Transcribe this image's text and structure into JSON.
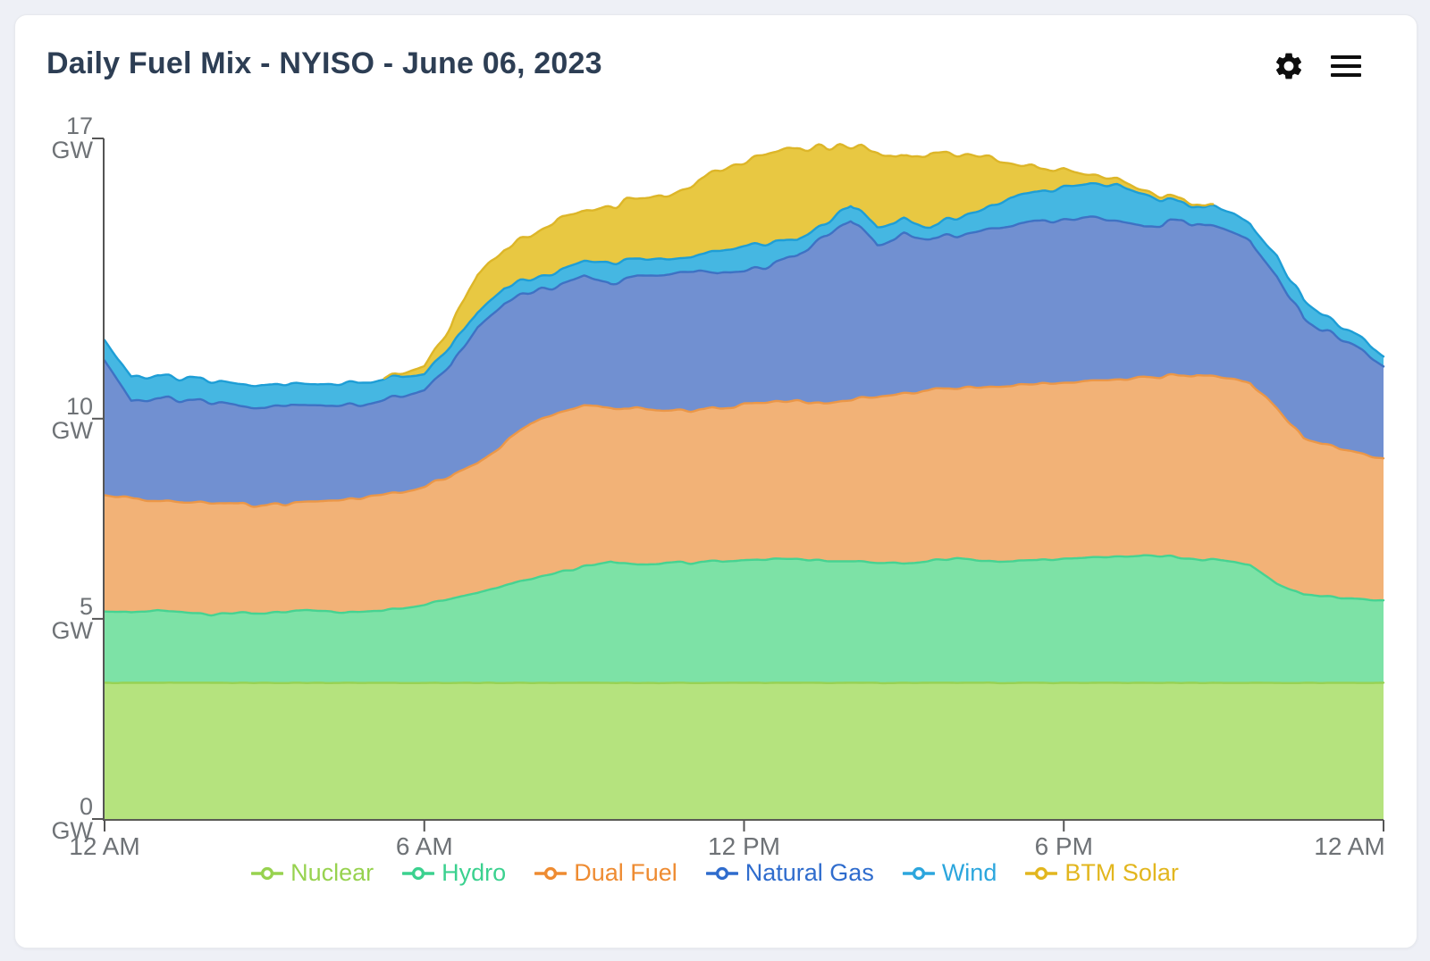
{
  "header": {
    "title": "Daily Fuel Mix - NYISO - June 06, 2023",
    "icons": [
      {
        "name": "settings-gear",
        "color": "#0e0e0e"
      },
      {
        "name": "menu-hamburger",
        "color": "#0e0e0e"
      }
    ]
  },
  "axis": {
    "y_unit": "GW",
    "y_ticks": [
      {
        "label": "17",
        "unit": "GW",
        "value": 17
      },
      {
        "label": "10",
        "unit": "GW",
        "value": 10
      },
      {
        "label": "5",
        "unit": "GW",
        "value": 5
      },
      {
        "label": "0",
        "unit": "GW",
        "value": 0
      }
    ],
    "x_ticks": [
      {
        "label": "12 AM",
        "hour": 0
      },
      {
        "label": "6 AM",
        "hour": 6
      },
      {
        "label": "12 PM",
        "hour": 12
      },
      {
        "label": "6 PM",
        "hour": 18
      },
      {
        "label": "12 AM",
        "hour": 24
      }
    ]
  },
  "chart_data": {
    "type": "area",
    "stacked": true,
    "title": "Daily Fuel Mix - NYISO - June 06, 2023",
    "xlabel": "",
    "ylabel": "GW",
    "ylim": [
      0,
      17
    ],
    "x_range_hours": [
      0,
      24
    ],
    "grid": false,
    "legend_position": "bottom",
    "x": [
      0,
      0.5,
      1,
      1.5,
      2,
      2.5,
      3,
      3.5,
      4,
      4.5,
      5,
      5.5,
      6,
      6.5,
      7,
      7.5,
      8,
      8.5,
      9,
      9.5,
      10,
      10.5,
      11,
      11.5,
      12,
      12.5,
      13,
      13.5,
      14,
      14.5,
      15,
      15.5,
      16,
      16.5,
      17,
      17.5,
      18,
      18.5,
      19,
      19.5,
      20,
      20.5,
      21,
      21.5,
      22,
      22.5,
      23,
      23.5,
      24
    ],
    "series": [
      {
        "name": "Nuclear",
        "fill": "#b5e37e",
        "line": "#97d253",
        "legend_color": "#97d24f",
        "values": [
          3.4,
          3.4,
          3.4,
          3.4,
          3.4,
          3.4,
          3.4,
          3.4,
          3.4,
          3.4,
          3.4,
          3.4,
          3.4,
          3.4,
          3.4,
          3.4,
          3.4,
          3.4,
          3.4,
          3.4,
          3.4,
          3.4,
          3.4,
          3.4,
          3.4,
          3.4,
          3.4,
          3.4,
          3.4,
          3.4,
          3.4,
          3.4,
          3.4,
          3.4,
          3.4,
          3.4,
          3.4,
          3.4,
          3.4,
          3.4,
          3.4,
          3.4,
          3.4,
          3.4,
          3.4,
          3.4,
          3.4,
          3.4,
          3.4
        ]
      },
      {
        "name": "Hydro",
        "fill": "#7de2a6",
        "line": "#46d392",
        "legend_color": "#3bd18f",
        "values": [
          1.8,
          1.75,
          1.8,
          1.75,
          1.7,
          1.75,
          1.75,
          1.8,
          1.8,
          1.75,
          1.8,
          1.85,
          1.95,
          2.1,
          2.25,
          2.45,
          2.6,
          2.75,
          2.9,
          3.05,
          2.95,
          3.0,
          3.0,
          3.05,
          3.05,
          3.1,
          3.1,
          3.05,
          3.05,
          3.0,
          3.0,
          3.05,
          3.1,
          3.05,
          3.05,
          3.05,
          3.1,
          3.15,
          3.15,
          3.2,
          3.15,
          3.1,
          3.05,
          2.95,
          2.5,
          2.2,
          2.15,
          2.1,
          2.05
        ]
      },
      {
        "name": "Dual Fuel",
        "fill": "#f2b277",
        "line": "#eb9748",
        "legend_color": "#ee8b31",
        "values": [
          2.9,
          2.85,
          2.75,
          2.75,
          2.8,
          2.7,
          2.7,
          2.7,
          2.7,
          2.8,
          2.85,
          2.9,
          2.95,
          3.05,
          3.25,
          3.55,
          3.9,
          4.0,
          4.0,
          3.85,
          3.9,
          3.8,
          3.8,
          3.8,
          3.9,
          3.9,
          3.95,
          3.95,
          4.05,
          4.15,
          4.25,
          4.25,
          4.25,
          4.35,
          4.4,
          4.4,
          4.4,
          4.4,
          4.4,
          4.45,
          4.5,
          4.6,
          4.55,
          4.55,
          4.4,
          3.9,
          3.75,
          3.65,
          3.55
        ]
      },
      {
        "name": "Natural Gas",
        "fill": "#7190d1",
        "line": "#3e72c4",
        "legend_color": "#2f6ccd",
        "values": [
          3.4,
          2.45,
          2.55,
          2.55,
          2.5,
          2.45,
          2.4,
          2.45,
          2.4,
          2.4,
          2.35,
          2.4,
          2.4,
          2.75,
          3.4,
          3.5,
          3.3,
          3.15,
          3.2,
          3.1,
          3.3,
          3.4,
          3.5,
          3.35,
          3.35,
          3.4,
          3.65,
          4.2,
          4.5,
          3.8,
          3.95,
          3.8,
          3.8,
          3.9,
          3.95,
          4.05,
          4.1,
          4.1,
          4.0,
          3.8,
          3.85,
          3.8,
          3.7,
          3.55,
          3.3,
          3.0,
          2.8,
          2.6,
          2.35
        ]
      },
      {
        "name": "Wind",
        "fill": "#45b7e2",
        "line": "#1e9ed6",
        "legend_color": "#2ca6dd",
        "values": [
          0.5,
          0.6,
          0.6,
          0.55,
          0.55,
          0.55,
          0.55,
          0.55,
          0.55,
          0.55,
          0.55,
          0.5,
          0.4,
          0.45,
          0.4,
          0.4,
          0.3,
          0.35,
          0.35,
          0.5,
          0.4,
          0.4,
          0.35,
          0.55,
          0.6,
          0.55,
          0.4,
          0.3,
          0.4,
          0.45,
          0.35,
          0.3,
          0.45,
          0.5,
          0.7,
          0.75,
          0.8,
          0.85,
          0.9,
          0.8,
          0.5,
          0.45,
          0.5,
          0.45,
          0.5,
          0.45,
          0.35,
          0.3,
          0.25
        ]
      },
      {
        "name": "BTM Solar",
        "fill": "#e8c842",
        "line": "#ddb629",
        "legend_color": "#e2b61e",
        "values": [
          0,
          0,
          0,
          0,
          0,
          0,
          0,
          0,
          0,
          0,
          0,
          0.05,
          0.2,
          0.5,
          0.95,
          1.0,
          1.1,
          1.35,
          1.25,
          1.45,
          1.5,
          1.55,
          1.8,
          2.0,
          2.1,
          2.25,
          2.25,
          1.95,
          1.4,
          1.9,
          1.5,
          1.85,
          1.6,
          1.3,
          0.85,
          0.6,
          0.45,
          0.2,
          0.15,
          0.1,
          0.1,
          0.05,
          0,
          0,
          0,
          0,
          0,
          0,
          0
        ]
      }
    ]
  }
}
